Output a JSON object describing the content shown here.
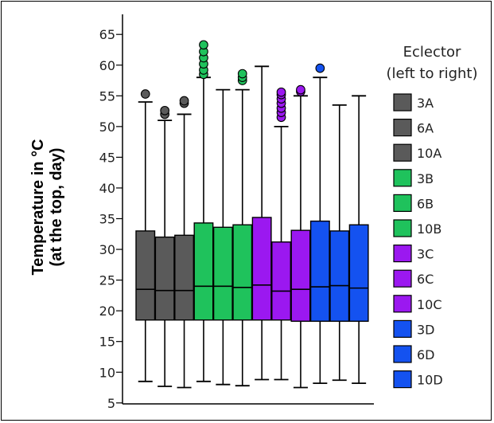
{
  "chart_data": {
    "type": "boxplot",
    "title": "",
    "ylabel_lines": [
      "Temperature in °C",
      "(at the top, day)"
    ],
    "xlabel": "",
    "ylim": [
      5,
      67
    ],
    "yticks": [
      5,
      10,
      15,
      20,
      25,
      30,
      35,
      40,
      45,
      50,
      55,
      60,
      65
    ],
    "grid": false,
    "legend": {
      "title_lines": [
        "Eclector",
        "(left to right)"
      ],
      "placement": "right"
    },
    "groups": [
      {
        "name": "A",
        "color": "#5a5a5a"
      },
      {
        "name": "B",
        "color": "#1fc25c"
      },
      {
        "name": "C",
        "color": "#9b18f0"
      },
      {
        "name": "D",
        "color": "#1452f0"
      }
    ],
    "series": [
      {
        "name": "3A",
        "group": 0,
        "whisker_low": 8.5,
        "q1": 18.5,
        "median": 23.5,
        "q3": 33.0,
        "whisker_high": 54.0,
        "outliers": [
          55.3
        ]
      },
      {
        "name": "6A",
        "group": 0,
        "whisker_low": 7.7,
        "q1": 18.5,
        "median": 23.3,
        "q3": 32.0,
        "whisker_high": 51.0,
        "outliers": [
          52.0,
          52.6
        ]
      },
      {
        "name": "10A",
        "group": 0,
        "whisker_low": 7.5,
        "q1": 18.5,
        "median": 23.3,
        "q3": 32.3,
        "whisker_high": 52.0,
        "outliers": [
          53.8,
          54.2
        ]
      },
      {
        "name": "3B",
        "group": 1,
        "whisker_low": 8.5,
        "q1": 18.5,
        "median": 24.0,
        "q3": 34.3,
        "whisker_high": 58.0,
        "outliers": [
          58.5,
          59.2,
          60.2,
          61.2,
          62.2,
          63.3
        ]
      },
      {
        "name": "6B",
        "group": 1,
        "whisker_low": 8.0,
        "q1": 18.5,
        "median": 24.0,
        "q3": 33.6,
        "whisker_high": 56.0,
        "outliers": []
      },
      {
        "name": "10B",
        "group": 1,
        "whisker_low": 7.8,
        "q1": 18.5,
        "median": 23.8,
        "q3": 34.0,
        "whisker_high": 56.0,
        "outliers": [
          57.5,
          58.0,
          58.6
        ]
      },
      {
        "name": "3C",
        "group": 2,
        "whisker_low": 8.8,
        "q1": 18.5,
        "median": 24.2,
        "q3": 35.2,
        "whisker_high": 59.8,
        "outliers": []
      },
      {
        "name": "6C",
        "group": 2,
        "whisker_low": 8.8,
        "q1": 18.5,
        "median": 23.2,
        "q3": 31.2,
        "whisker_high": 50.0,
        "outliers": [
          51.5,
          52.3,
          53.0,
          53.8,
          54.5,
          55.2,
          55.6
        ]
      },
      {
        "name": "10C",
        "group": 2,
        "whisker_low": 7.5,
        "q1": 18.3,
        "median": 23.5,
        "q3": 33.1,
        "whisker_high": 55.0,
        "outliers": [
          55.7,
          56.0
        ]
      },
      {
        "name": "3D",
        "group": 3,
        "whisker_low": 8.2,
        "q1": 18.3,
        "median": 23.9,
        "q3": 34.6,
        "whisker_high": 58.0,
        "outliers": [
          59.5
        ]
      },
      {
        "name": "6D",
        "group": 3,
        "whisker_low": 8.7,
        "q1": 18.3,
        "median": 24.1,
        "q3": 33.0,
        "whisker_high": 53.5,
        "outliers": []
      },
      {
        "name": "10D",
        "group": 3,
        "whisker_low": 8.2,
        "q1": 18.3,
        "median": 23.7,
        "q3": 34.0,
        "whisker_high": 55.0,
        "outliers": []
      }
    ]
  }
}
